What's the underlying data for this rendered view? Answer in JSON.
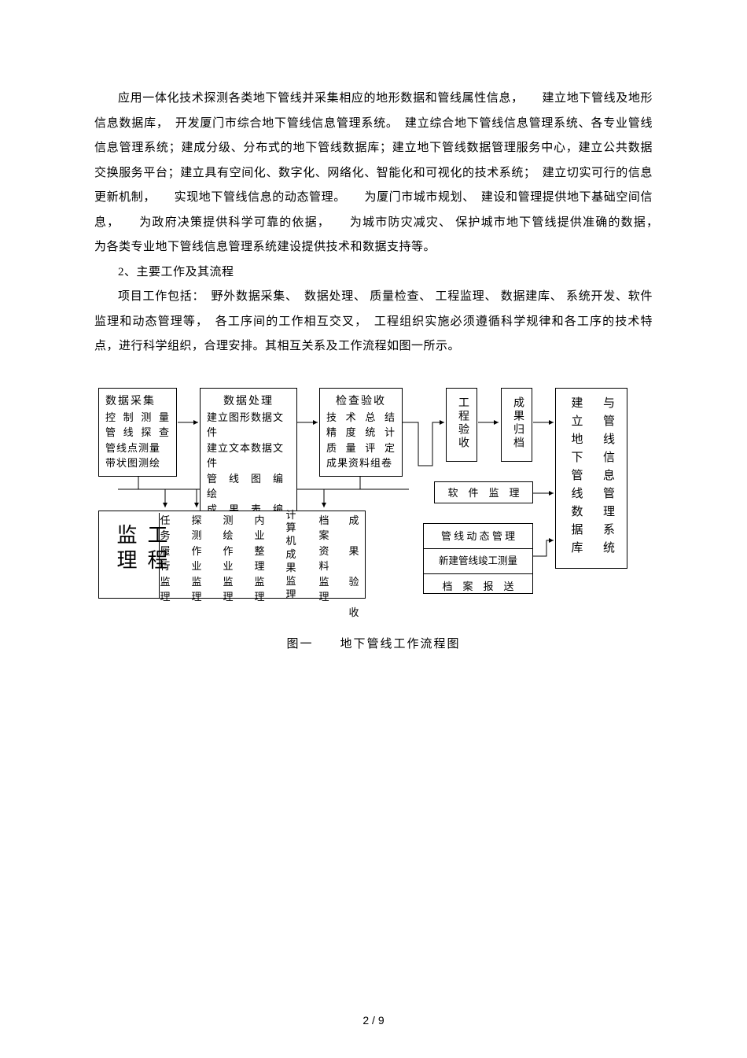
{
  "para1": "应用一体化技术探测各类地下管线并采集相应的地形数据和管线属性信息，　　建立地下管线及地形信息数据库，　开发厦门市综合地下管线信息管理系统。　建立综合地下管线信息管理系统、各专业管线信息管理系统；建成分级、分布式的地下管线数据库；建立地下管线数据管理服务中心，建立公共数据交换服务平台；建立具有空间化、数字化、网络化、智能化和可视化的技术系统；　建立切实可行的信息更新机制，　　实现地下管线信息的动态管理。　　为厦门市城市规划、　建设和管理提供地下基础空间信息，　　为政府决策提供科学可靠的依据，　　为城市防灾减灾、 保护城市地下管线提供准确的数据，　　为各类专业地下管线信息管理系统建设提供技术和数据支持等。",
  "section2": "2、主要工作及其流程",
  "para2": "项目工作包括：　野外数据采集、　数据处理、 质量检查、 工程监理、 数据建库、 系统开发、软件监理和动态管理等，　各工序间的工作相互交叉，　工程组织实施必须遵循科学规律和各工序的技术特点，进行科学组织，合理安排。其相互关系及工作流程如图一所示。",
  "caption": "图一　　地下管线工作流程图",
  "pagenum": "2 / 9",
  "box1": {
    "title": "数据采集",
    "items": [
      "控 制 测 量",
      "管 线 探 查",
      "管线点测量",
      "带状图测绘"
    ]
  },
  "box2": {
    "title": "数据处理",
    "items": [
      "建立图形数据文件",
      "建立文本数据文件",
      "管　线　图　编　绘",
      "成　果　表　编　制"
    ]
  },
  "box3": {
    "title": "检查验收",
    "items": [
      "技 术 总 结",
      "精 度 统 计",
      "质 量 评 定",
      "成果资料组卷"
    ]
  },
  "box4": "工程验收",
  "box5": "成果归档",
  "box6": "软　件　监　理",
  "box7": "建立地下管线数据库",
  "box8": "与管线信息管理系统",
  "box9": "管 线 动 态 管 理",
  "box10": "新建管线竣工测量",
  "box11": "档　案　报　送",
  "box_jl": "工程监理",
  "jl_cols": [
    [
      "任",
      "务",
      "履",
      "行",
      "监",
      "理"
    ],
    [
      "探",
      "测",
      "作",
      "业",
      "监",
      "理"
    ],
    [
      "测",
      "绘",
      "作",
      "业",
      "监",
      "理"
    ],
    [
      "内",
      "业",
      "整",
      "理",
      "监",
      "理"
    ],
    [
      "计",
      "算",
      "机",
      "成",
      "果",
      "监",
      "理"
    ],
    [
      "档",
      "案",
      "资",
      "料",
      "监",
      "理"
    ],
    [
      "成",
      "",
      "果",
      "",
      "验",
      "",
      "收"
    ]
  ]
}
